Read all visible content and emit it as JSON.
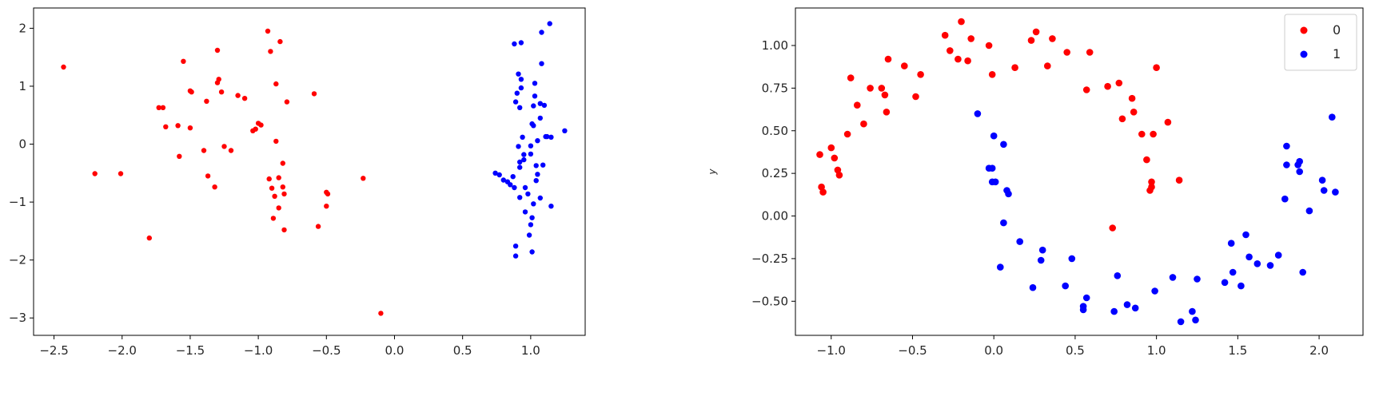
{
  "chart_data": [
    {
      "type": "scatter",
      "xlim": [
        -2.65,
        1.4
      ],
      "ylim": [
        -3.3,
        2.35
      ],
      "x_ticks": [
        -2.5,
        -2.0,
        -1.5,
        -1.0,
        -0.5,
        0.0,
        0.5,
        1.0
      ],
      "x_tick_labels": [
        "−2.5",
        "−2.0",
        "−1.5",
        "−1.0",
        "−0.5",
        "0.0",
        "0.5",
        "1.0"
      ],
      "y_ticks": [
        2,
        1,
        0,
        -1,
        -2,
        -3
      ],
      "y_tick_labels": [
        "2",
        "1",
        "0",
        "−1",
        "−2",
        "−3"
      ],
      "grid": false,
      "legend": null,
      "series": [
        {
          "color": "#ff0000",
          "points": [
            [
              -2.43,
              1.33
            ],
            [
              -2.2,
              -0.51
            ],
            [
              -2.01,
              -0.51
            ],
            [
              -1.8,
              -1.62
            ],
            [
              -1.73,
              0.63
            ],
            [
              -1.7,
              0.63
            ],
            [
              -1.68,
              0.3
            ],
            [
              -1.59,
              0.32
            ],
            [
              -1.58,
              -0.21
            ],
            [
              -1.55,
              1.43
            ],
            [
              -1.5,
              0.28
            ],
            [
              -1.5,
              0.92
            ],
            [
              -1.49,
              0.9
            ],
            [
              -1.4,
              -0.11
            ],
            [
              -1.38,
              0.74
            ],
            [
              -1.37,
              -0.55
            ],
            [
              -1.32,
              -0.74
            ],
            [
              -1.3,
              1.62
            ],
            [
              -1.3,
              1.06
            ],
            [
              -1.29,
              1.12
            ],
            [
              -1.27,
              0.9
            ],
            [
              -1.25,
              -0.04
            ],
            [
              -1.2,
              -0.11
            ],
            [
              -1.15,
              0.84
            ],
            [
              -1.1,
              0.79
            ],
            [
              -1.04,
              0.23
            ],
            [
              -1.02,
              0.26
            ],
            [
              -1.0,
              0.36
            ],
            [
              -0.98,
              0.33
            ],
            [
              -0.93,
              1.95
            ],
            [
              -0.92,
              -0.6
            ],
            [
              -0.91,
              1.6
            ],
            [
              -0.9,
              -0.76
            ],
            [
              -0.89,
              -1.28
            ],
            [
              -0.88,
              -0.9
            ],
            [
              -0.87,
              1.04
            ],
            [
              -0.87,
              0.05
            ],
            [
              -0.85,
              -1.1
            ],
            [
              -0.85,
              -0.58
            ],
            [
              -0.84,
              1.77
            ],
            [
              -0.82,
              -0.33
            ],
            [
              -0.82,
              -0.74
            ],
            [
              -0.81,
              -0.86
            ],
            [
              -0.81,
              -1.48
            ],
            [
              -0.79,
              0.73
            ],
            [
              -0.59,
              0.87
            ],
            [
              -0.56,
              -1.42
            ],
            [
              -0.5,
              -0.83
            ],
            [
              -0.5,
              -1.07
            ],
            [
              -0.49,
              -0.86
            ],
            [
              -0.23,
              -0.59
            ],
            [
              -0.1,
              -2.92
            ]
          ]
        },
        {
          "color": "#0000ff",
          "points": [
            [
              0.74,
              -0.5
            ],
            [
              0.77,
              -0.53
            ],
            [
              0.8,
              -0.62
            ],
            [
              0.83,
              -0.65
            ],
            [
              0.85,
              -0.7
            ],
            [
              0.87,
              -0.56
            ],
            [
              0.88,
              -0.75
            ],
            [
              0.88,
              1.73
            ],
            [
              0.89,
              -1.93
            ],
            [
              0.89,
              -1.76
            ],
            [
              0.89,
              0.73
            ],
            [
              0.9,
              0.88
            ],
            [
              0.91,
              -0.04
            ],
            [
              0.91,
              1.21
            ],
            [
              0.92,
              -0.31
            ],
            [
              0.92,
              -0.4
            ],
            [
              0.92,
              -0.92
            ],
            [
              0.92,
              0.63
            ],
            [
              0.93,
              1.75
            ],
            [
              0.93,
              0.97
            ],
            [
              0.93,
              1.12
            ],
            [
              0.94,
              0.12
            ],
            [
              0.95,
              -0.18
            ],
            [
              0.95,
              -0.27
            ],
            [
              0.96,
              -0.75
            ],
            [
              0.96,
              -1.17
            ],
            [
              0.98,
              -0.86
            ],
            [
              0.99,
              -1.57
            ],
            [
              1.0,
              -0.17
            ],
            [
              1.0,
              -0.03
            ],
            [
              1.0,
              -1.39
            ],
            [
              1.01,
              0.35
            ],
            [
              1.01,
              -1.27
            ],
            [
              1.01,
              -1.86
            ],
            [
              1.02,
              0.66
            ],
            [
              1.02,
              0.32
            ],
            [
              1.02,
              -1.03
            ],
            [
              1.03,
              1.05
            ],
            [
              1.03,
              0.83
            ],
            [
              1.04,
              -0.37
            ],
            [
              1.04,
              -0.63
            ],
            [
              1.05,
              0.06
            ],
            [
              1.05,
              -0.52
            ],
            [
              1.07,
              0.7
            ],
            [
              1.07,
              0.45
            ],
            [
              1.07,
              -0.93
            ],
            [
              1.08,
              1.39
            ],
            [
              1.08,
              1.93
            ],
            [
              1.09,
              -0.36
            ],
            [
              1.1,
              0.67
            ],
            [
              1.11,
              0.13
            ],
            [
              1.12,
              0.13
            ],
            [
              1.14,
              2.08
            ],
            [
              1.15,
              0.12
            ],
            [
              1.15,
              -1.07
            ],
            [
              1.25,
              0.23
            ]
          ]
        }
      ]
    },
    {
      "type": "scatter",
      "xlim": [
        -1.22,
        2.27
      ],
      "ylim": [
        -0.7,
        1.22
      ],
      "x_ticks": [
        -1.0,
        -0.5,
        0.0,
        0.5,
        1.0,
        1.5,
        2.0
      ],
      "x_tick_labels": [
        "−1.0",
        "−0.5",
        "0.0",
        "0.5",
        "1.0",
        "1.5",
        "2.0"
      ],
      "y_ticks": [
        1.0,
        0.75,
        0.5,
        0.25,
        0.0,
        -0.25,
        -0.5
      ],
      "y_tick_labels": [
        "1.00",
        "0.75",
        "0.50",
        "0.25",
        "0.00",
        "−0.25",
        "−0.50"
      ],
      "ylabel": "y",
      "grid": false,
      "legend": "top-right",
      "series": [
        {
          "name": "0",
          "color": "#ff0000",
          "points": [
            [
              -1.07,
              0.36
            ],
            [
              -1.06,
              0.17
            ],
            [
              -1.05,
              0.14
            ],
            [
              -1.0,
              0.4
            ],
            [
              -0.98,
              0.34
            ],
            [
              -0.96,
              0.27
            ],
            [
              -0.95,
              0.24
            ],
            [
              -0.9,
              0.48
            ],
            [
              -0.88,
              0.81
            ],
            [
              -0.84,
              0.65
            ],
            [
              -0.8,
              0.54
            ],
            [
              -0.76,
              0.75
            ],
            [
              -0.69,
              0.75
            ],
            [
              -0.67,
              0.71
            ],
            [
              -0.66,
              0.61
            ],
            [
              -0.65,
              0.92
            ],
            [
              -0.55,
              0.88
            ],
            [
              -0.48,
              0.7
            ],
            [
              -0.45,
              0.83
            ],
            [
              -0.3,
              1.06
            ],
            [
              -0.27,
              0.97
            ],
            [
              -0.22,
              0.92
            ],
            [
              -0.2,
              1.14
            ],
            [
              -0.16,
              0.91
            ],
            [
              -0.14,
              1.04
            ],
            [
              -0.03,
              1.0
            ],
            [
              -0.01,
              0.83
            ],
            [
              0.13,
              0.87
            ],
            [
              0.23,
              1.03
            ],
            [
              0.26,
              1.08
            ],
            [
              0.33,
              0.88
            ],
            [
              0.36,
              1.04
            ],
            [
              0.45,
              0.96
            ],
            [
              0.57,
              0.74
            ],
            [
              0.59,
              0.96
            ],
            [
              0.7,
              0.76
            ],
            [
              0.73,
              -0.07
            ],
            [
              0.77,
              0.78
            ],
            [
              0.79,
              0.57
            ],
            [
              0.85,
              0.69
            ],
            [
              0.86,
              0.61
            ],
            [
              0.91,
              0.48
            ],
            [
              0.94,
              0.33
            ],
            [
              0.96,
              0.15
            ],
            [
              0.97,
              0.2
            ],
            [
              0.97,
              0.17
            ],
            [
              0.98,
              0.48
            ],
            [
              1.0,
              0.87
            ],
            [
              1.07,
              0.55
            ],
            [
              1.14,
              0.21
            ]
          ]
        },
        {
          "name": "1",
          "color": "#0000ff",
          "points": [
            [
              -0.1,
              0.6
            ],
            [
              -0.03,
              0.28
            ],
            [
              -0.01,
              0.28
            ],
            [
              -0.01,
              0.2
            ],
            [
              0.0,
              0.47
            ],
            [
              0.01,
              0.2
            ],
            [
              0.04,
              -0.3
            ],
            [
              0.06,
              -0.04
            ],
            [
              0.06,
              0.42
            ],
            [
              0.08,
              0.15
            ],
            [
              0.09,
              0.13
            ],
            [
              0.16,
              -0.15
            ],
            [
              0.24,
              -0.42
            ],
            [
              0.29,
              -0.26
            ],
            [
              0.3,
              -0.2
            ],
            [
              0.44,
              -0.41
            ],
            [
              0.48,
              -0.25
            ],
            [
              0.55,
              -0.53
            ],
            [
              0.55,
              -0.55
            ],
            [
              0.57,
              -0.48
            ],
            [
              0.74,
              -0.56
            ],
            [
              0.76,
              -0.35
            ],
            [
              0.82,
              -0.52
            ],
            [
              0.87,
              -0.54
            ],
            [
              0.99,
              -0.44
            ],
            [
              1.1,
              -0.36
            ],
            [
              1.15,
              -0.62
            ],
            [
              1.22,
              -0.56
            ],
            [
              1.24,
              -0.61
            ],
            [
              1.25,
              -0.37
            ],
            [
              1.42,
              -0.39
            ],
            [
              1.46,
              -0.16
            ],
            [
              1.47,
              -0.33
            ],
            [
              1.52,
              -0.41
            ],
            [
              1.55,
              -0.11
            ],
            [
              1.57,
              -0.24
            ],
            [
              1.62,
              -0.28
            ],
            [
              1.7,
              -0.29
            ],
            [
              1.75,
              -0.23
            ],
            [
              1.79,
              0.1
            ],
            [
              1.8,
              0.3
            ],
            [
              1.8,
              0.41
            ],
            [
              1.87,
              0.3
            ],
            [
              1.88,
              0.26
            ],
            [
              1.88,
              0.32
            ],
            [
              1.9,
              -0.33
            ],
            [
              1.94,
              0.03
            ],
            [
              2.02,
              0.21
            ],
            [
              2.03,
              0.15
            ],
            [
              2.08,
              0.58
            ],
            [
              2.1,
              0.14
            ]
          ]
        }
      ]
    }
  ]
}
